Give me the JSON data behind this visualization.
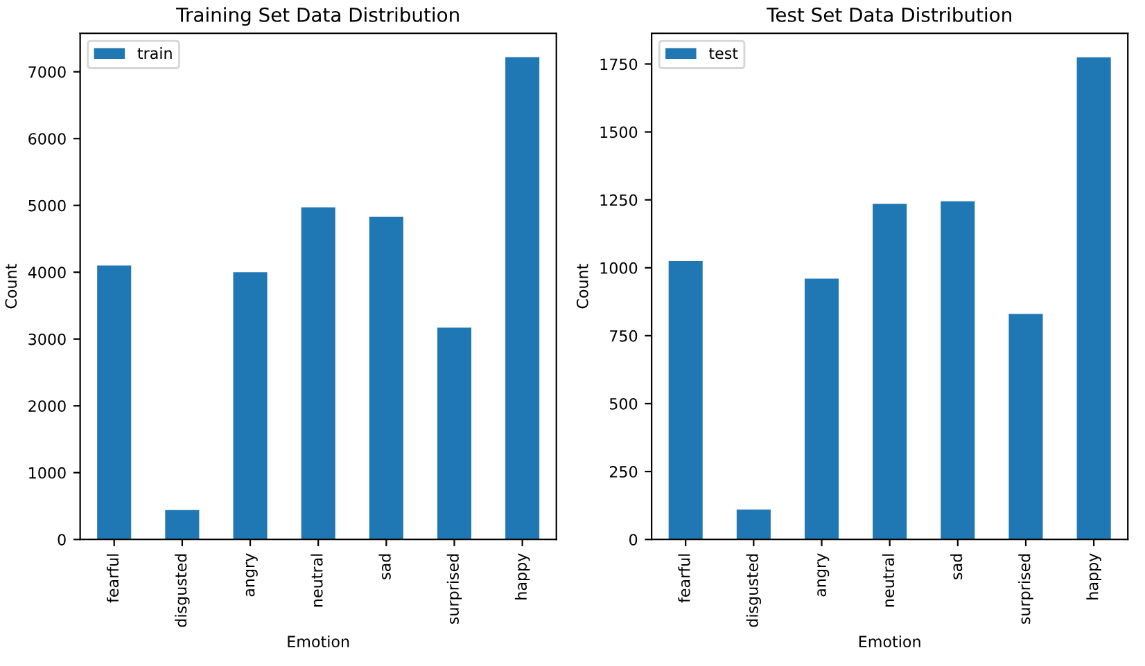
{
  "chart_data": [
    {
      "type": "bar",
      "title": "Training Set Data Distribution",
      "xlabel": "Emotion",
      "ylabel": "Count",
      "categories": [
        "fearful",
        "disgusted",
        "angry",
        "neutral",
        "sad",
        "surprised",
        "happy"
      ],
      "series": [
        {
          "name": "train",
          "color": "#1f77b4",
          "values": [
            4100,
            440,
            4000,
            4970,
            4830,
            3170,
            7220
          ]
        }
      ],
      "ylim": [
        0,
        7576
      ],
      "yticks": [
        0,
        1000,
        2000,
        3000,
        4000,
        5000,
        6000,
        7000
      ],
      "legend": "top left",
      "grid": false
    },
    {
      "type": "bar",
      "title": "Test Set Data Distribution",
      "xlabel": "Emotion",
      "ylabel": "Count",
      "categories": [
        "fearful",
        "disgusted",
        "angry",
        "neutral",
        "sad",
        "surprised",
        "happy"
      ],
      "series": [
        {
          "name": "test",
          "color": "#1f77b4",
          "values": [
            1025,
            110,
            960,
            1235,
            1245,
            830,
            1775
          ]
        }
      ],
      "ylim": [
        0,
        1863
      ],
      "yticks": [
        0,
        250,
        500,
        750,
        1000,
        1250,
        1500,
        1750
      ],
      "legend": "top left",
      "grid": false
    }
  ]
}
